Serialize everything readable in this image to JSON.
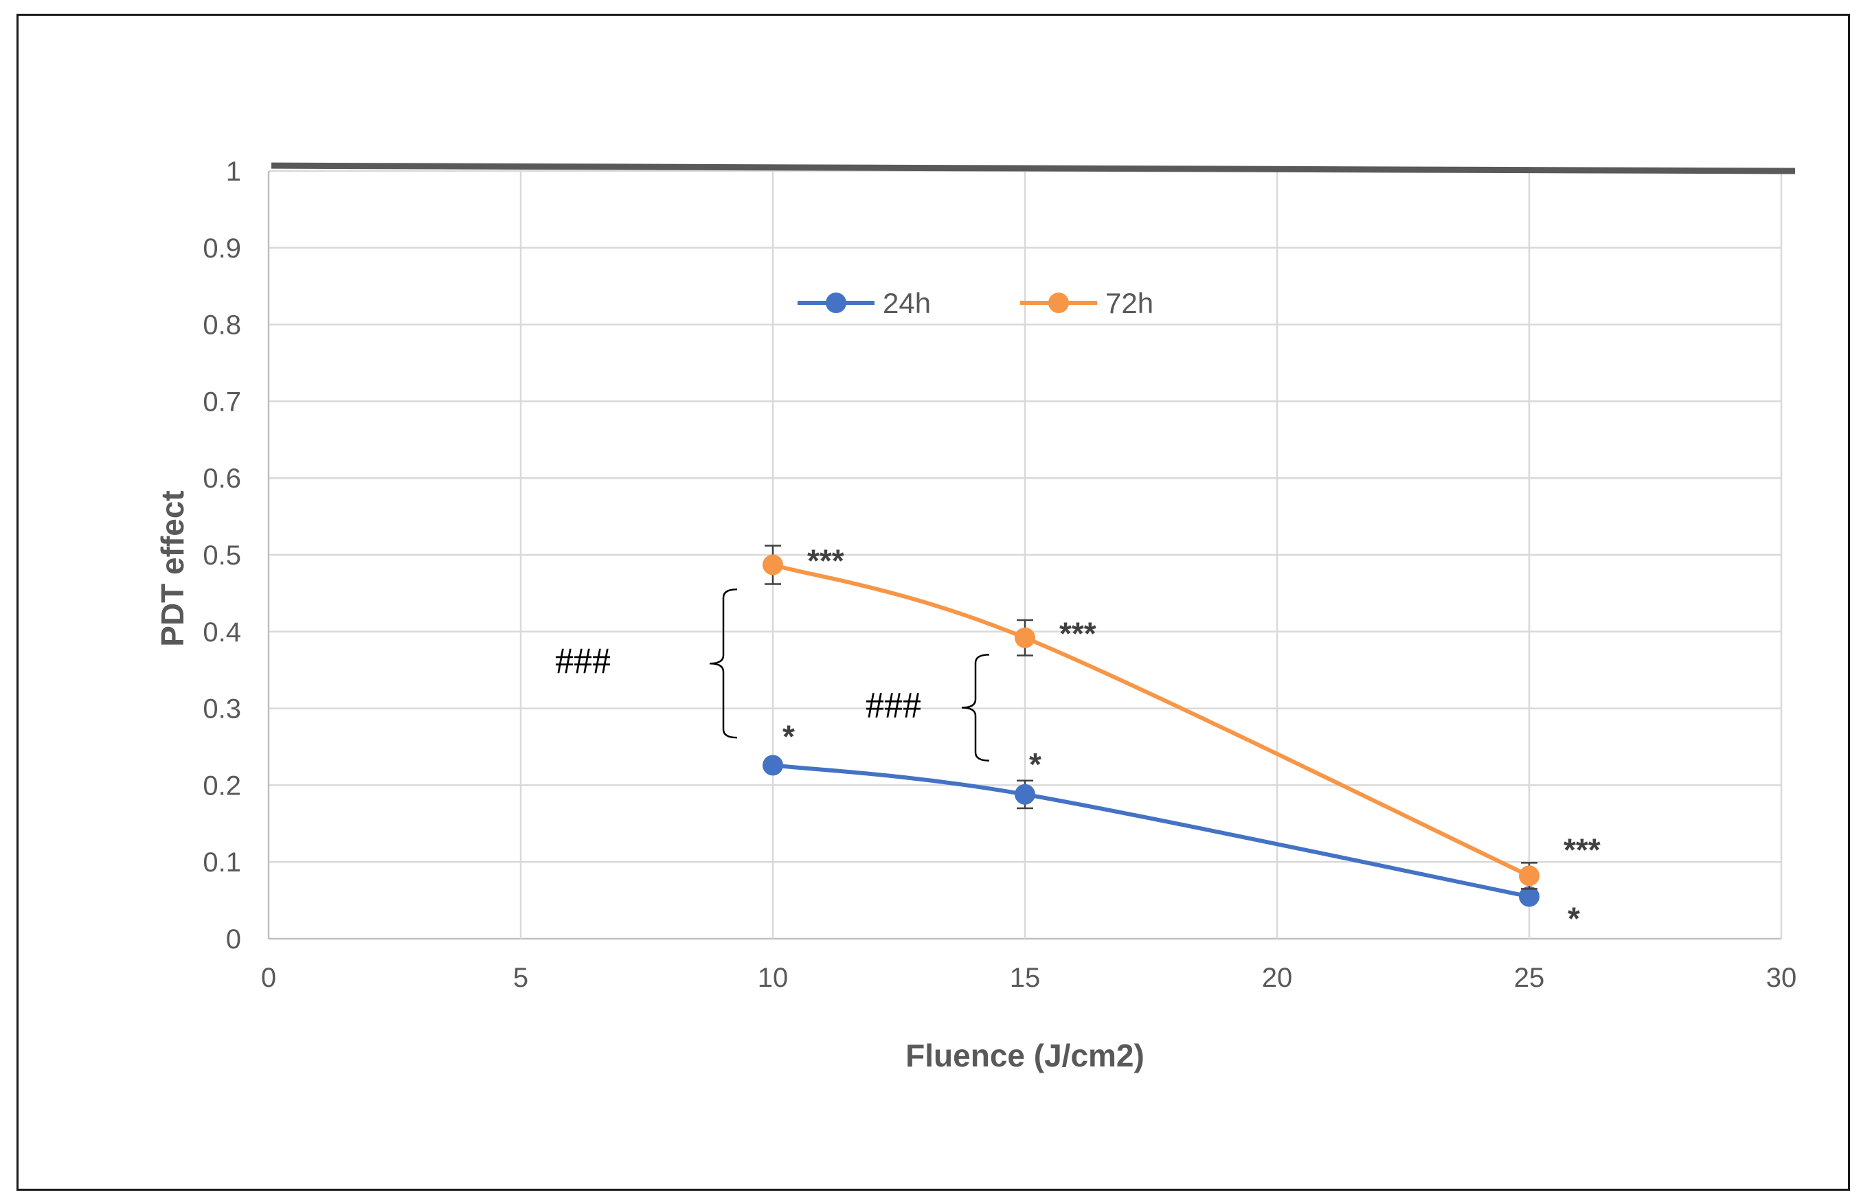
{
  "chart_data": {
    "type": "line",
    "title": "",
    "xlabel": "Fluence (J/cm2)",
    "ylabel": "PDT effect",
    "xlim": [
      0,
      30
    ],
    "ylim": [
      0,
      1
    ],
    "xticks": [
      "0",
      "5",
      "10",
      "15",
      "20",
      "25",
      "30"
    ],
    "yticks": [
      "0",
      "0.1",
      "0.2",
      "0.3",
      "0.4",
      "0.5",
      "0.6",
      "0.7",
      "0.8",
      "0.9",
      "1"
    ],
    "grid": true,
    "legend_position": "top-center",
    "reference_line": {
      "y_start": 1.007,
      "y_end": 1.0,
      "color": "#595959"
    },
    "series": [
      {
        "name": "24h",
        "color": "#4472C4",
        "x": [
          10,
          15,
          25
        ],
        "y": [
          0.226,
          0.188,
          0.055
        ],
        "err": [
          0.0,
          0.018,
          0.0
        ],
        "labels": [
          "*",
          "*",
          "*"
        ]
      },
      {
        "name": "72h",
        "color": "#F79646",
        "x": [
          10,
          15,
          25
        ],
        "y": [
          0.487,
          0.392,
          0.082
        ],
        "err": [
          0.025,
          0.023,
          0.017
        ],
        "labels": [
          "***",
          "***",
          "***"
        ]
      }
    ],
    "comparisons": [
      {
        "x": 10,
        "label": "###",
        "y_low": 0.262,
        "y_high": 0.455
      },
      {
        "x": 15,
        "label": "###",
        "y_low": 0.232,
        "y_high": 0.37
      }
    ]
  }
}
